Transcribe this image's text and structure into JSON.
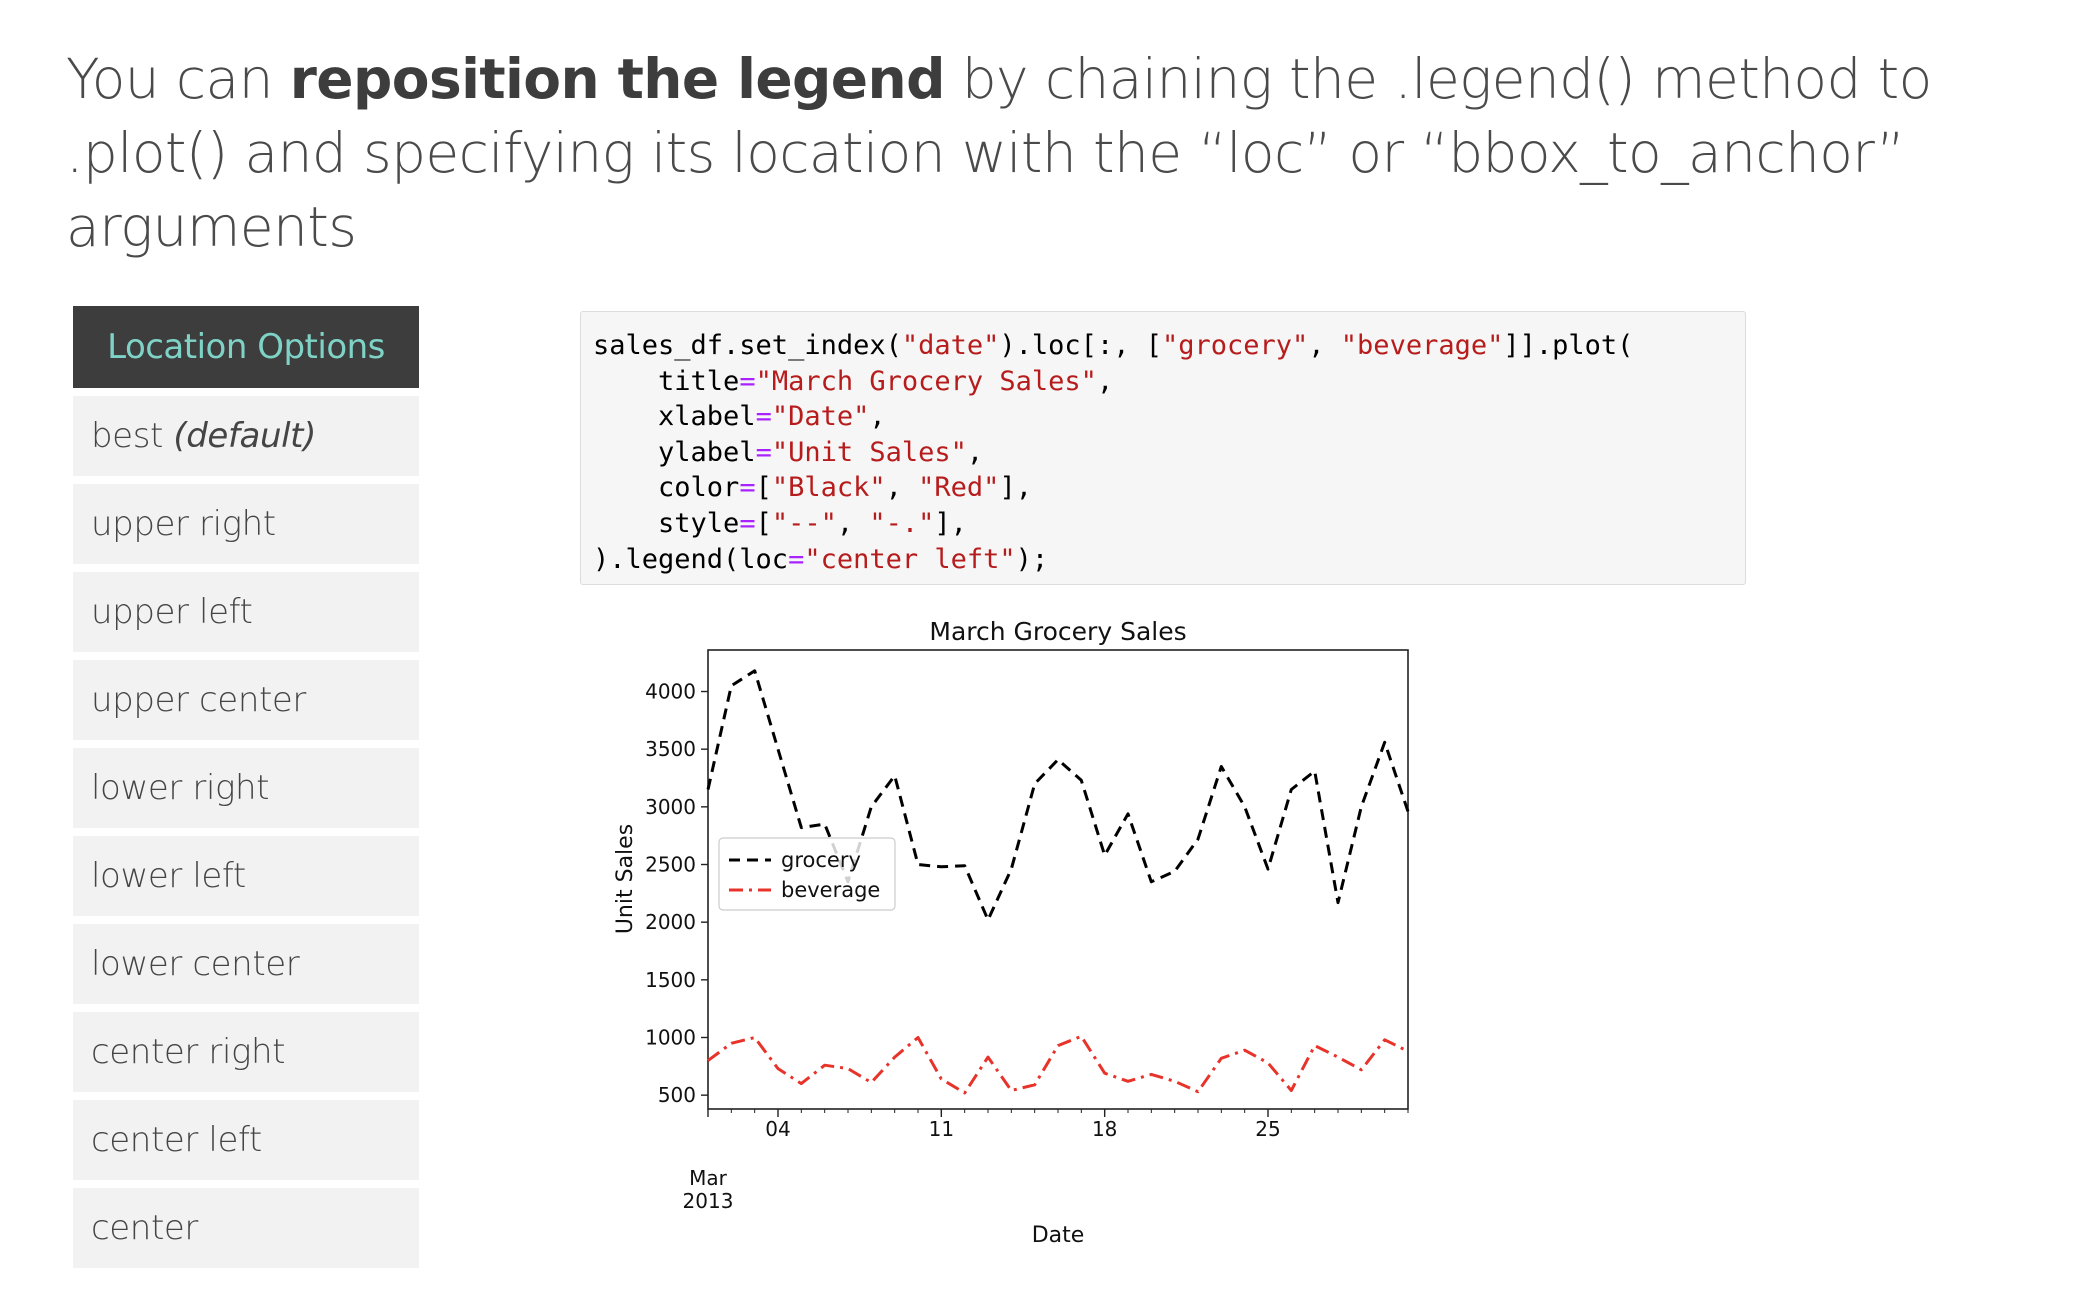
{
  "headline": {
    "part1": "You can ",
    "bold": "reposition the legend",
    "part2": " by chaining the .legend() method to .plot() and specifying its location with the “loc” or “bbox_to_anchor” arguments"
  },
  "location_options": {
    "header": "Location Options",
    "items": [
      {
        "label": "best",
        "note": "(default)"
      },
      {
        "label": "upper right",
        "note": ""
      },
      {
        "label": "upper left",
        "note": ""
      },
      {
        "label": "upper center",
        "note": ""
      },
      {
        "label": "lower right",
        "note": ""
      },
      {
        "label": "lower left",
        "note": ""
      },
      {
        "label": "lower center",
        "note": ""
      },
      {
        "label": "center right",
        "note": ""
      },
      {
        "label": "center left",
        "note": ""
      },
      {
        "label": "center",
        "note": ""
      }
    ]
  },
  "code": {
    "lines": [
      [
        {
          "t": "sales_df.set_index(",
          "c": ""
        },
        {
          "t": "\"date\"",
          "c": "s"
        },
        {
          "t": ").loc[:, [",
          "c": ""
        },
        {
          "t": "\"grocery\"",
          "c": "s"
        },
        {
          "t": ", ",
          "c": ""
        },
        {
          "t": "\"beverage\"",
          "c": "s"
        },
        {
          "t": "]].plot(",
          "c": ""
        }
      ],
      [
        {
          "t": "    title",
          "c": ""
        },
        {
          "t": "=",
          "c": "op"
        },
        {
          "t": "\"March Grocery Sales\"",
          "c": "s"
        },
        {
          "t": ",",
          "c": ""
        }
      ],
      [
        {
          "t": "    xlabel",
          "c": ""
        },
        {
          "t": "=",
          "c": "op"
        },
        {
          "t": "\"Date\"",
          "c": "s"
        },
        {
          "t": ",",
          "c": ""
        }
      ],
      [
        {
          "t": "    ylabel",
          "c": ""
        },
        {
          "t": "=",
          "c": "op"
        },
        {
          "t": "\"Unit Sales\"",
          "c": "s"
        },
        {
          "t": ",",
          "c": ""
        }
      ],
      [
        {
          "t": "    color",
          "c": ""
        },
        {
          "t": "=",
          "c": "op"
        },
        {
          "t": "[",
          "c": ""
        },
        {
          "t": "\"Black\"",
          "c": "s"
        },
        {
          "t": ", ",
          "c": ""
        },
        {
          "t": "\"Red\"",
          "c": "s"
        },
        {
          "t": "],",
          "c": ""
        }
      ],
      [
        {
          "t": "    style",
          "c": ""
        },
        {
          "t": "=",
          "c": "op"
        },
        {
          "t": "[",
          "c": ""
        },
        {
          "t": "\"--\"",
          "c": "s"
        },
        {
          "t": ", ",
          "c": ""
        },
        {
          "t": "\"-.\"",
          "c": "s"
        },
        {
          "t": "],",
          "c": ""
        }
      ],
      [
        {
          "t": ").legend(loc",
          "c": ""
        },
        {
          "t": "=",
          "c": "op"
        },
        {
          "t": "\"center left\"",
          "c": "s"
        },
        {
          "t": ");",
          "c": ""
        }
      ]
    ]
  },
  "chart_data": {
    "type": "line",
    "title": "March Grocery Sales",
    "xlabel": "Date",
    "ylabel": "Unit Sales",
    "x": [
      1,
      2,
      3,
      4,
      5,
      6,
      7,
      8,
      9,
      10,
      11,
      12,
      13,
      14,
      15,
      16,
      17,
      18,
      19,
      20,
      21,
      22,
      23,
      24,
      25,
      26,
      27,
      28,
      29,
      30,
      31
    ],
    "xlim": [
      1,
      31
    ],
    "ylim": [
      380,
      4360
    ],
    "xticks": [
      {
        "x": 4,
        "label": "04"
      },
      {
        "x": 11,
        "label": "11"
      },
      {
        "x": 18,
        "label": "18"
      },
      {
        "x": 25,
        "label": "25"
      }
    ],
    "x_start_label": [
      "Mar",
      "2013"
    ],
    "yticks": [
      500,
      1000,
      1500,
      2000,
      2500,
      3000,
      3500,
      4000
    ],
    "grid": false,
    "legend": {
      "placement": "center left",
      "entries": [
        "grocery",
        "beverage"
      ]
    },
    "series": [
      {
        "name": "grocery",
        "color": "#000000",
        "style": "dashed",
        "values": [
          3150,
          4050,
          4180,
          3500,
          2820,
          2850,
          2350,
          3000,
          3270,
          2500,
          2480,
          2490,
          2020,
          2460,
          3200,
          3410,
          3230,
          2580,
          2940,
          2350,
          2440,
          2720,
          3350,
          3000,
          2460,
          3150,
          3310,
          2170,
          3000,
          3560,
          2960
        ]
      },
      {
        "name": "beverage",
        "color": "#e8332a",
        "style": "dashdot",
        "values": [
          800,
          950,
          1000,
          730,
          600,
          760,
          730,
          610,
          830,
          1000,
          640,
          520,
          830,
          540,
          590,
          930,
          1010,
          690,
          620,
          680,
          620,
          530,
          820,
          890,
          780,
          540,
          930,
          830,
          720,
          980,
          880
        ]
      }
    ]
  }
}
